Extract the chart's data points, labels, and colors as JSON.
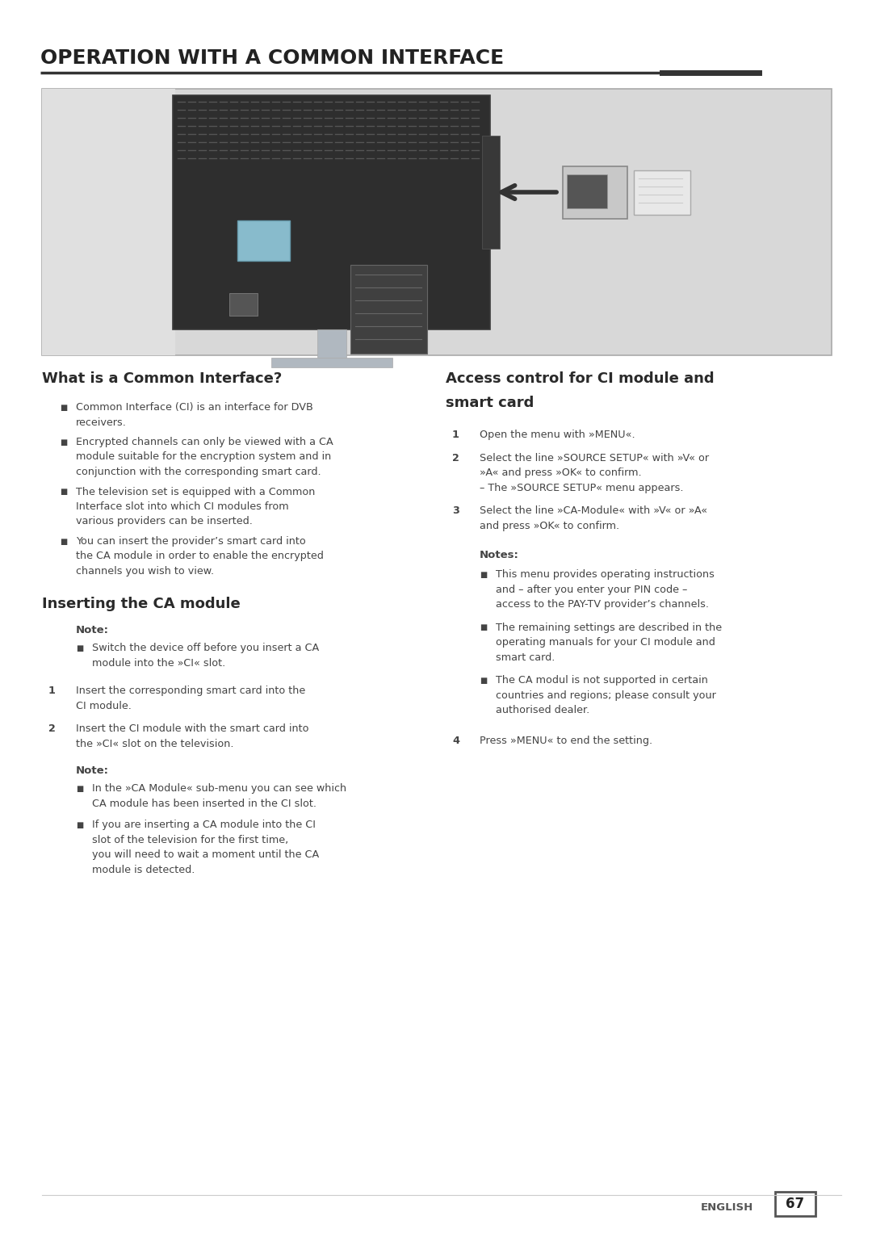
{
  "title": "OPERATION WITH A COMMON INTERFACE",
  "bg_color": "#ffffff",
  "text_color": "#444444",
  "title_color": "#222222",
  "heading_color": "#3a3a3a",
  "sections": {
    "left_heading1": "What is a Common Interface?",
    "left_bullets1": [
      "Common Interface (CI) is an interface for DVB receivers.",
      "Encrypted channels can only be viewed with a CA module suitable for the encryption system and in conjunction with the corresponding smart card.",
      "The television set is equipped with a Common Interface slot into which CI modules from various providers can be inserted.",
      "You can insert the provider’s smart card into the CA module in order to enable the encrypted channels you wish to view."
    ],
    "left_heading2": "Inserting the CA module",
    "left_note1_label": "Note:",
    "left_note1_bullets": [
      "Switch the device off before you insert a CA module into the »CI« slot."
    ],
    "left_steps": [
      [
        "1",
        "Insert the corresponding smart card into the CI module."
      ],
      [
        "2",
        "Insert the CI module with the smart card into the »CI« slot on the television."
      ]
    ],
    "left_note2_label": "Note:",
    "left_note2_bullets": [
      "In the »CA Module« sub-menu you can see which CA module has been inserted in the CI slot.",
      "If you are inserting a CA module into the CI slot of the television for the first time, you will need to wait a moment until the CA module is detected."
    ],
    "right_heading1_line1": "Access control for CI module and",
    "right_heading1_line2": "smart card",
    "right_steps": [
      [
        "1",
        "Open the menu with »MENU«."
      ],
      [
        "2",
        "Select the line »SOURCE SETUP« with »V« or »A« and press »OK« to confirm.\n– The »SOURCE SETUP« menu appears."
      ],
      [
        "3",
        "Select the line »CA-Module« with »V« or »A« and press »OK« to confirm."
      ]
    ],
    "right_notes_label": "Notes:",
    "right_note_bullets": [
      "This menu provides operating instructions and – after you enter your PIN code – access to the PAY-TV provider’s channels.",
      "The remaining settings are described in the operating manuals for your CI module and smart card.",
      "The CA modul is not supported in certain countries and regions; please consult your authorised dealer."
    ],
    "right_step4": [
      "4",
      "Press »MENU« to end the setting."
    ]
  },
  "footer_text": "ENGLISH",
  "footer_page": "67"
}
